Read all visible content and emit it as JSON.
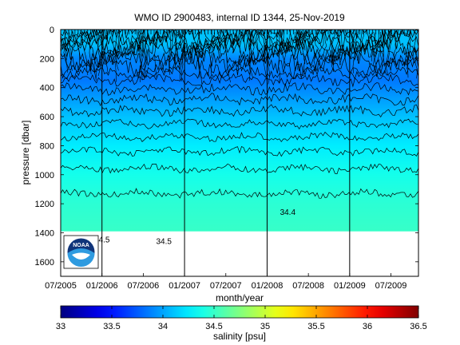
{
  "chart_data": {
    "type": "heatmap",
    "title": "WMO ID 2900483, internal ID 1344, 25-Nov-2019",
    "xlabel": "month/year",
    "ylabel": "pressure [dbar]",
    "x_ticks": [
      "07/2005",
      "01/2006",
      "07/2006",
      "01/2007",
      "07/2007",
      "01/2008",
      "07/2008",
      "01/2009",
      "07/2009"
    ],
    "y_ticks": [
      0,
      200,
      400,
      600,
      800,
      1000,
      1200,
      1400,
      1600
    ],
    "ylim": [
      0,
      1700
    ],
    "xlim": [
      "2005-07",
      "2009-11"
    ],
    "year_lines": [
      "01/2006",
      "01/2007",
      "01/2008",
      "01/2009"
    ],
    "colorbar": {
      "label": "salinity [psu]",
      "range": [
        33,
        36.5
      ],
      "ticks": [
        33,
        33.5,
        34,
        34.5,
        35,
        35.5,
        36,
        36.5
      ],
      "colormap": "jet"
    },
    "data_bottom_pressure": 1390,
    "approx_salinity_profile": [
      {
        "pressure": 0,
        "salinity": 34.1
      },
      {
        "pressure": 100,
        "salinity": 34.1
      },
      {
        "pressure": 200,
        "salinity": 33.9
      },
      {
        "pressure": 350,
        "salinity": 33.85
      },
      {
        "pressure": 450,
        "salinity": 33.95
      },
      {
        "pressure": 600,
        "salinity": 34.1
      },
      {
        "pressure": 800,
        "salinity": 34.25
      },
      {
        "pressure": 1000,
        "salinity": 34.38
      },
      {
        "pressure": 1200,
        "salinity": 34.46
      },
      {
        "pressure": 1390,
        "salinity": 34.5
      }
    ],
    "contour_labels": [
      {
        "text": "34.4",
        "x": "04/2008",
        "y": 1260
      },
      {
        "text": "34.5",
        "x": "01/2006",
        "y": 1450
      },
      {
        "text": "34.5",
        "x": "10/2006",
        "y": 1460
      },
      {
        "text": "34.5",
        "x": "11/2005",
        "y": 1470
      }
    ]
  },
  "logo": {
    "text": "NOAA",
    "colors": {
      "dark": "#10347a",
      "light": "#2f9be0",
      "white": "#ffffff"
    }
  }
}
